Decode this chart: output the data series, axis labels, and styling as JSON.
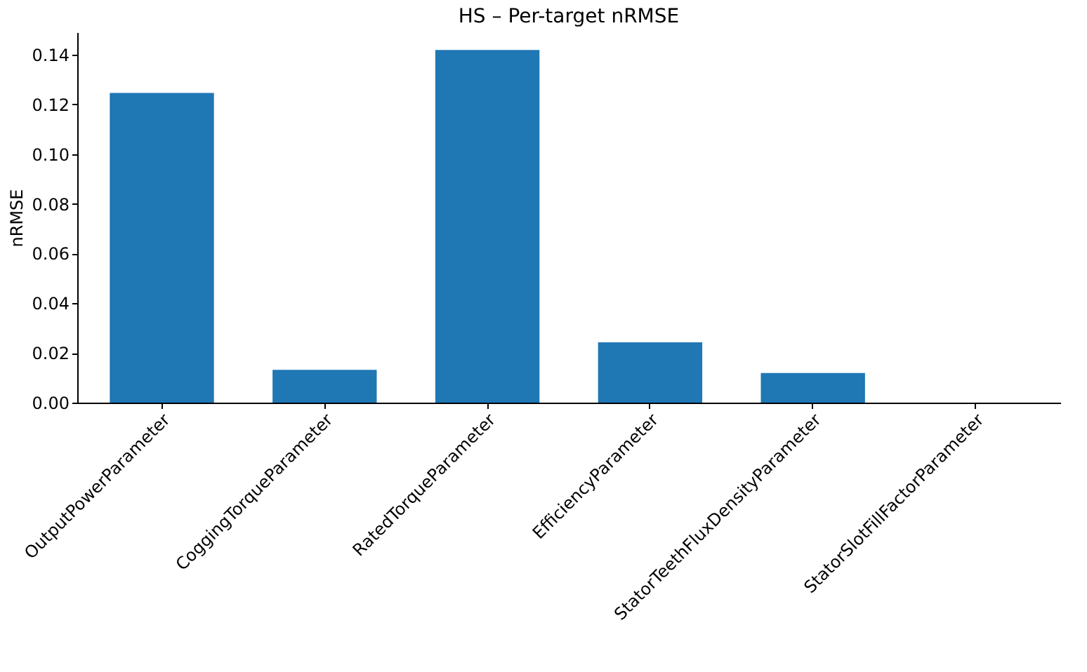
{
  "chart_data": {
    "type": "bar",
    "title": "HS – Per-target nRMSE",
    "ylabel": "nRMSE",
    "categories": [
      "OutputPowerParameter",
      "CoggingTorqueParameter",
      "RatedTorqueParameter",
      "EfficiencyParameter",
      "StatorTeethFluxDensityParameter",
      "StatorSlotFillFactorParameter"
    ],
    "values": [
      0.1246,
      0.0132,
      0.1419,
      0.0243,
      0.0119,
      0.0
    ],
    "color": "#1f77b4",
    "ylim": [
      0,
      0.149
    ],
    "yticks": [
      {
        "value": 0,
        "label": "0.00"
      },
      {
        "value": 0.02,
        "label": "0.02"
      },
      {
        "value": 0.04,
        "label": "0.04"
      },
      {
        "value": 0.06,
        "label": "0.06"
      },
      {
        "value": 0.08,
        "label": "0.08"
      },
      {
        "value": 0.1,
        "label": "0.10"
      },
      {
        "value": 0.12,
        "label": "0.12"
      },
      {
        "value": 0.14,
        "label": "0.14"
      }
    ],
    "grid": false
  }
}
